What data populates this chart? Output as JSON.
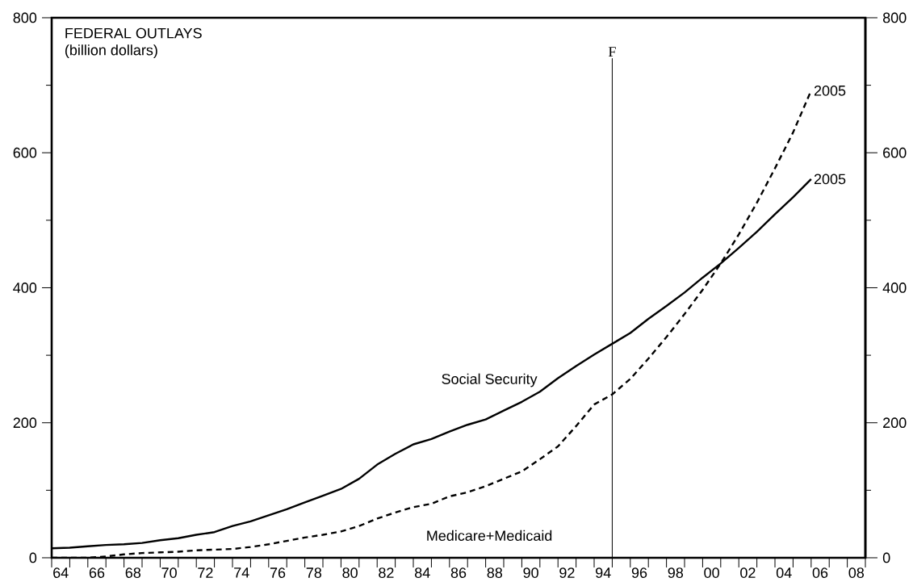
{
  "chart_data": {
    "type": "line",
    "title": "FEDERAL OUTLAYS",
    "subtitle": "(billion dollars)",
    "x": [
      1963.5,
      1964.5,
      1965.5,
      1966.5,
      1967.5,
      1968.5,
      1969.5,
      1970.5,
      1971.5,
      1972.5,
      1973.5,
      1974.5,
      1975.5,
      1976.5,
      1977.5,
      1978.5,
      1979.5,
      1980.5,
      1981.5,
      1982.5,
      1983.5,
      1984.5,
      1985.5,
      1986.5,
      1987.5,
      1988.5,
      1989.5,
      1990.5,
      1991.5,
      1992.5,
      1993.5,
      1994.5,
      1995.5,
      1996.5,
      1997.5,
      1998.5,
      1999.5,
      2000.5,
      2001.5,
      2002.5,
      2003.5,
      2004.5,
      2005.5
    ],
    "series": [
      {
        "name": "Social Security",
        "color": "#000000",
        "line_style": "solid",
        "values": [
          14,
          15,
          17,
          19,
          20,
          22,
          26,
          29,
          34,
          38,
          47,
          54,
          63,
          72,
          82,
          92,
          102,
          117,
          138,
          154,
          168,
          176,
          187,
          197,
          205,
          218,
          231,
          246,
          266,
          284,
          301,
          317,
          333,
          354,
          373,
          393,
          415,
          436,
          459,
          483,
          509,
          534,
          561
        ]
      },
      {
        "name": "Medicare+Medicaid",
        "color": "#000000",
        "line_style": "dashed",
        "values": [
          0,
          0,
          0,
          2,
          5,
          7,
          8,
          9,
          11,
          12,
          13,
          16,
          20,
          25,
          30,
          34,
          39,
          47,
          58,
          67,
          75,
          80,
          91,
          97,
          106,
          117,
          128,
          146,
          165,
          195,
          227,
          242,
          265,
          295,
          327,
          361,
          397,
          436,
          479,
          526,
          577,
          630,
          692
        ]
      }
    ],
    "xlim": [
      1963.5,
      2008.5
    ],
    "xticks": [
      {
        "value": 1963.5,
        "label": null
      },
      {
        "value": 1964.5,
        "label": null
      },
      {
        "value": 1965.5,
        "label": null
      },
      {
        "value": 1966.5,
        "label": null
      },
      {
        "value": 1967.5,
        "label": null
      },
      {
        "value": 1968.5,
        "label": null
      },
      {
        "value": 1969.5,
        "label": null
      },
      {
        "value": 1970.5,
        "label": null
      },
      {
        "value": 1971.5,
        "label": null
      },
      {
        "value": 1972.5,
        "label": null
      },
      {
        "value": 1973.5,
        "label": null
      },
      {
        "value": 1974.5,
        "label": null
      },
      {
        "value": 1975.5,
        "label": null
      },
      {
        "value": 1976.5,
        "label": null
      },
      {
        "value": 1977.5,
        "label": null
      },
      {
        "value": 1978.5,
        "label": null
      },
      {
        "value": 1979.5,
        "label": null
      },
      {
        "value": 1980.5,
        "label": null
      },
      {
        "value": 1981.5,
        "label": null
      },
      {
        "value": 1982.5,
        "label": null
      },
      {
        "value": 1983.5,
        "label": null
      },
      {
        "value": 1984.5,
        "label": null
      },
      {
        "value": 1985.5,
        "label": null
      },
      {
        "value": 1986.5,
        "label": null
      },
      {
        "value": 1987.5,
        "label": null
      },
      {
        "value": 1988.5,
        "label": null
      },
      {
        "value": 1989.5,
        "label": null
      },
      {
        "value": 1990.5,
        "label": null
      },
      {
        "value": 1991.5,
        "label": null
      },
      {
        "value": 1992.5,
        "label": null
      },
      {
        "value": 1993.5,
        "label": null
      },
      {
        "value": 1994.5,
        "label": null
      },
      {
        "value": 1995.5,
        "label": null
      },
      {
        "value": 1996.5,
        "label": null
      },
      {
        "value": 1997.5,
        "label": null
      },
      {
        "value": 1998.5,
        "label": null
      },
      {
        "value": 1999.5,
        "label": null
      },
      {
        "value": 2000.5,
        "label": null
      },
      {
        "value": 2001.5,
        "label": null
      },
      {
        "value": 2002.5,
        "label": null
      },
      {
        "value": 2003.5,
        "label": null
      },
      {
        "value": 2004.5,
        "label": null
      },
      {
        "value": 2005.5,
        "label": null
      },
      {
        "value": 2006.5,
        "label": null
      },
      {
        "value": 2007.5,
        "label": null
      },
      {
        "value": 2008.5,
        "label": null
      },
      {
        "value": 1964,
        "label": "64"
      },
      {
        "value": 1966,
        "label": "66"
      },
      {
        "value": 1968,
        "label": "68"
      },
      {
        "value": 1970,
        "label": "70"
      },
      {
        "value": 1972,
        "label": "72"
      },
      {
        "value": 1974,
        "label": "74"
      },
      {
        "value": 1976,
        "label": "76"
      },
      {
        "value": 1978,
        "label": "78"
      },
      {
        "value": 1980,
        "label": "80"
      },
      {
        "value": 1982,
        "label": "82"
      },
      {
        "value": 1984,
        "label": "84"
      },
      {
        "value": 1986,
        "label": "86"
      },
      {
        "value": 1988,
        "label": "88"
      },
      {
        "value": 1990,
        "label": "90"
      },
      {
        "value": 1992,
        "label": "92"
      },
      {
        "value": 1994,
        "label": "94"
      },
      {
        "value": 1996,
        "label": "96"
      },
      {
        "value": 1998,
        "label": "98"
      },
      {
        "value": 2000,
        "label": "00"
      },
      {
        "value": 2002,
        "label": "02"
      },
      {
        "value": 2004,
        "label": "04"
      },
      {
        "value": 2006,
        "label": "06"
      },
      {
        "value": 2008,
        "label": "08"
      }
    ],
    "ylim": [
      0,
      800
    ],
    "yticks": [
      0,
      {
        "value": 100,
        "label": null
      },
      200,
      {
        "value": 300,
        "label": null
      },
      400,
      {
        "value": 500,
        "label": null
      },
      600,
      {
        "value": 700,
        "label": null
      },
      800
    ],
    "y2lim": [
      0,
      800
    ],
    "y2ticks": [
      0,
      {
        "value": 100,
        "label": null
      },
      200,
      {
        "value": 300,
        "label": null
      },
      400,
      {
        "value": 500,
        "label": null
      },
      600,
      {
        "value": 700,
        "label": null
      },
      800
    ],
    "ref_lines": [
      {
        "axis": "x",
        "value": 1994.5,
        "label": "F",
        "color": "#000000"
      }
    ],
    "annotations": [
      {
        "text": "2005",
        "x": 2005.5,
        "y": 692
      },
      {
        "text": "2005",
        "x": 2005.5,
        "y": 561
      }
    ],
    "grid": false,
    "marker": "none"
  }
}
